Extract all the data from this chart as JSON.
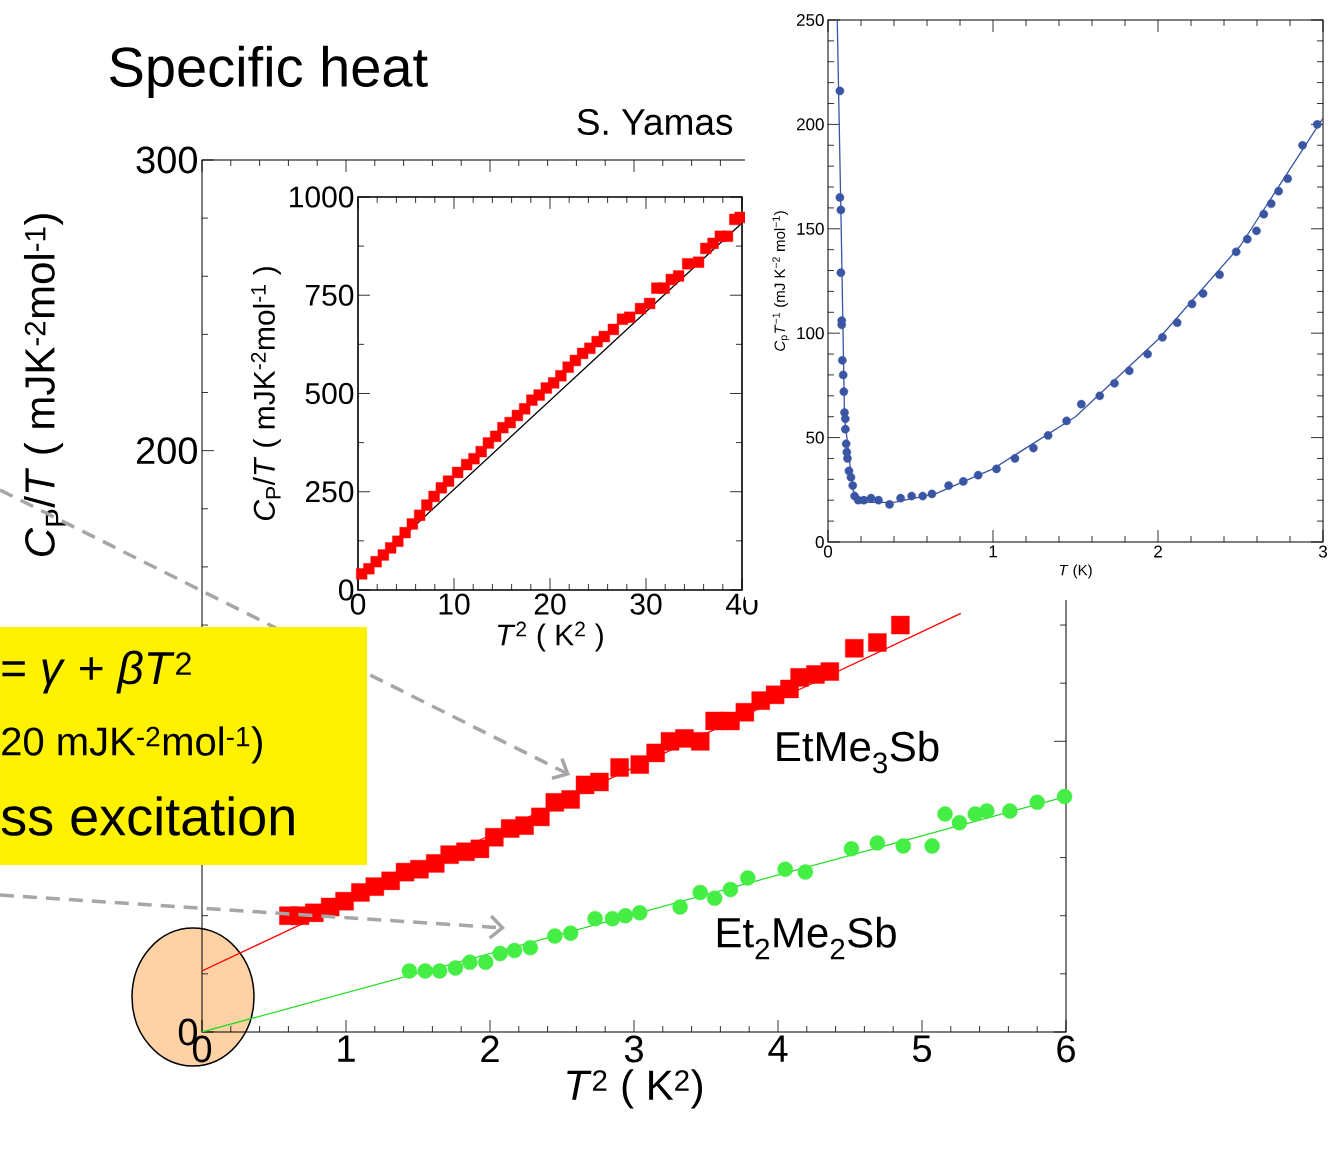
{
  "chart_data": [
    {
      "type": "scatter",
      "title": "Specific heat",
      "xlabel": "*T*$^{2}$ ( K$^{2}$)",
      "ylabel": "*C*$_{P}$/*T*  ( mJK$^{-2}$mol$^{-1}$)",
      "annotations": [
        "S. Yamas",
        "= *γ* + *βT*$^{2}$",
        "20 mJK$^{-2}$mol$^{-1}$)",
        "ss excitation"
      ],
      "xlim": [
        0,
        6
      ],
      "xticks": [
        0,
        1,
        2,
        3,
        4,
        5,
        6
      ],
      "ylim": [
        0,
        300
      ],
      "yticks": [
        0,
        {
          "value": 100,
          "label": null
        },
        200,
        300
      ],
      "grid": false,
      "legend": false,
      "series": [
        {
          "name": "EtMe$_{3}$Sb",
          "type": "scatter",
          "marker": "square",
          "color": "#ff0000",
          "x": [
            0.6,
            0.68,
            0.78,
            0.89,
            0.99,
            1.1,
            1.2,
            1.31,
            1.41,
            1.51,
            1.62,
            1.72,
            1.83,
            1.93,
            2.03,
            2.14,
            2.24,
            2.35,
            2.45,
            2.56,
            2.66,
            2.76,
            2.9,
            3.04,
            3.15,
            3.25,
            3.35,
            3.46,
            3.56,
            3.67,
            3.77,
            3.88,
            3.98,
            4.08,
            4.15,
            4.26,
            4.36,
            4.53,
            4.69,
            4.85
          ],
          "values": [
            40,
            40,
            41,
            43,
            45,
            48,
            50,
            52,
            55,
            56,
            58,
            61,
            62,
            63,
            67,
            70,
            71,
            74,
            79,
            80,
            85,
            86,
            91,
            92,
            96,
            100,
            101,
            100,
            107,
            107,
            110,
            114,
            116,
            118,
            122,
            123,
            124,
            132,
            134,
            140
          ]
        },
        {
          "type": "line",
          "marker": "none",
          "color": "#ff0000",
          "x": [
            0,
            5.27
          ],
          "values": [
            21,
            144
          ]
        },
        {
          "name": "Et$_{2}$Me$_{2}$Sb",
          "type": "scatter",
          "marker": "circle",
          "color": "#44ee44",
          "x": [
            1.44,
            1.55,
            1.65,
            1.76,
            1.86,
            1.97,
            2.07,
            2.17,
            2.28,
            2.45,
            2.56,
            2.73,
            2.85,
            2.94,
            3.04,
            3.32,
            3.46,
            3.56,
            3.67,
            3.79,
            4.05,
            4.19,
            4.51,
            4.69,
            4.87,
            5.07,
            5.16,
            5.26,
            5.37,
            5.45,
            5.61,
            5.8,
            5.99
          ],
          "values": [
            21,
            21,
            21,
            22,
            24,
            24,
            27,
            28,
            29,
            33,
            34,
            39,
            39,
            40,
            41,
            43,
            48,
            46,
            49,
            53,
            56,
            55,
            63,
            65,
            64,
            64,
            75,
            72,
            75,
            76,
            76,
            79,
            81
          ]
        },
        {
          "type": "line",
          "marker": "none",
          "color": "#22dd22",
          "x": [
            0,
            6
          ],
          "values": [
            0,
            81
          ]
        }
      ]
    },
    {
      "type": "scatter",
      "xlabel": "*T*$^{2}$ ( K$^{2}$ )",
      "ylabel": "*C*$_{P}$/*T*  ( mJK$^{-2}$mol$^{-1}$ )",
      "xlim": [
        0,
        40
      ],
      "xticks": [
        0,
        10,
        20,
        30,
        40
      ],
      "ylim": [
        0,
        1000
      ],
      "yticks": [
        0,
        250,
        500,
        750,
        1000
      ],
      "grid": false,
      "legend": false,
      "series": [
        {
          "type": "line",
          "marker": "none",
          "color": "#000000",
          "x": [
            0,
            40
          ],
          "values": [
            30,
            934
          ]
        },
        {
          "type": "scatter",
          "marker": "square",
          "color": "#ff0000",
          "x": [
            0.38,
            1.13,
            1.89,
            2.64,
            3.4,
            4.15,
            4.91,
            5.66,
            6.42,
            7.17,
            7.92,
            8.68,
            9.43,
            10.38,
            11.32,
            12.08,
            12.83,
            13.58,
            14.34,
            15.09,
            15.85,
            16.6,
            17.36,
            18.11,
            18.87,
            19.62,
            20.38,
            21.13,
            21.89,
            22.64,
            23.4,
            24.15,
            24.91,
            25.66,
            26.6,
            27.55,
            28.3,
            29.43,
            30.38,
            31.13,
            31.89,
            32.64,
            33.4,
            34.34,
            35.47,
            36.23,
            36.98,
            37.74,
            38.49,
            39.25,
            39.81
          ],
          "values": [
            41,
            54,
            72,
            89,
            107,
            124,
            146,
            168,
            190,
            216,
            238,
            260,
            277,
            299,
            319,
            334,
            352,
            374,
            391,
            413,
            426,
            444,
            461,
            483,
            496,
            514,
            527,
            545,
            567,
            584,
            602,
            615,
            632,
            645,
            663,
            689,
            694,
            716,
            729,
            768,
            768,
            790,
            799,
            830,
            834,
            869,
            882,
            900,
            900,
            943,
            948
          ]
        }
      ]
    },
    {
      "type": "scatter",
      "xlabel": "*T* (K)",
      "ylabel": "*C*$_{p}$*T*$^{−1}$ (mJ K$^{−2}$ mol$^{−1}$)",
      "xlim": [
        0,
        3
      ],
      "xticks": [
        0,
        1,
        2,
        3
      ],
      "ylim": [
        0,
        250
      ],
      "yticks": [
        0,
        50,
        100,
        150,
        200,
        250
      ],
      "grid": false,
      "legend": false,
      "series": [
        {
          "type": "scatter",
          "marker": "circle",
          "color": "#3a55a4",
          "x": [
            0.072,
            0.072,
            0.078,
            0.078,
            0.083,
            0.083,
            0.087,
            0.092,
            0.096,
            0.1,
            0.105,
            0.105,
            0.11,
            0.114,
            0.118,
            0.127,
            0.139,
            0.15,
            0.161,
            0.183,
            0.217,
            0.261,
            0.306,
            0.373,
            0.44,
            0.507,
            0.574,
            0.63,
            0.731,
            0.82,
            0.91,
            1.021,
            1.133,
            1.245,
            1.334,
            1.446,
            1.535,
            1.647,
            1.736,
            1.826,
            1.937,
            2.027,
            2.116,
            2.206,
            2.273,
            2.373,
            2.474,
            2.541,
            2.597,
            2.641,
            2.686,
            2.731,
            2.786,
            2.876,
            2.965
          ],
          "values": [
            216,
            165,
            159,
            129,
            106,
            104,
            87,
            80,
            72,
            62,
            59,
            54,
            47,
            43,
            40,
            34,
            31,
            27,
            22,
            20,
            20,
            21,
            20,
            18,
            21,
            22,
            22,
            23,
            27,
            29,
            32,
            35,
            40,
            45,
            51,
            58,
            66,
            70,
            76,
            82,
            90,
            98,
            105,
            114,
            119,
            128,
            139,
            145,
            149,
            157,
            162,
            168,
            174,
            190,
            200
          ]
        },
        {
          "type": "line",
          "marker": "none",
          "color": "#3a55a4",
          "x": [
            0.056,
            0.08,
            0.1,
            0.15,
            0.2,
            0.4,
            0.65,
            1,
            1.5,
            2,
            2.5,
            3
          ],
          "values": [
            250,
            150,
            60,
            25,
            19,
            19,
            23,
            35,
            60,
            97,
            142,
            203
          ]
        }
      ]
    }
  ]
}
